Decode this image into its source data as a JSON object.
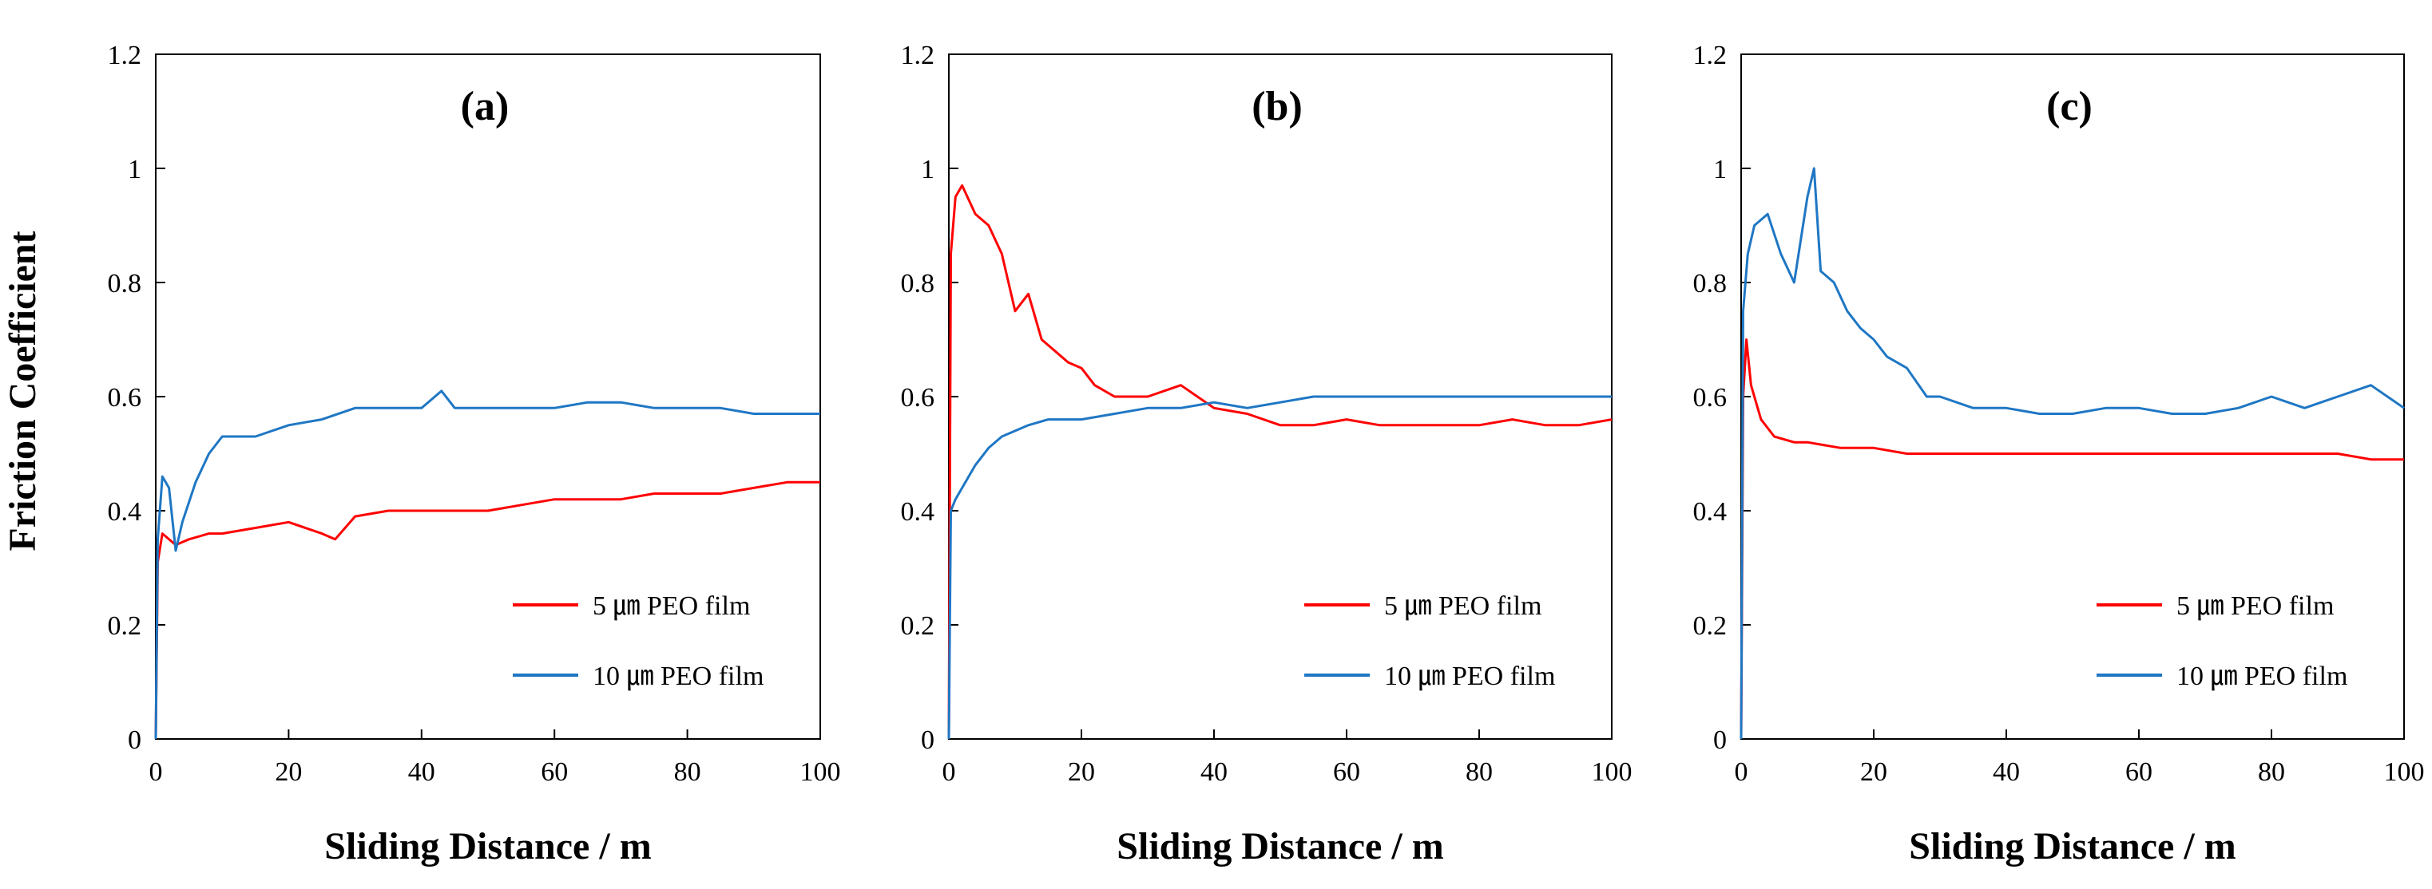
{
  "figure": {
    "ylabel": "Friction Coefficient"
  },
  "colors": {
    "red": "#ff0000",
    "blue": "#1f77c4",
    "axis": "#000000"
  },
  "chart_data": [
    {
      "type": "line",
      "title": "(a)",
      "xlabel": "Sliding Distance / m",
      "ylabel": "Friction Coefficient",
      "xlim": [
        0,
        100
      ],
      "ylim": [
        0,
        1.2
      ],
      "xticks": [
        "0",
        "20",
        "40",
        "60",
        "80",
        "100"
      ],
      "yticks": [
        "0",
        "0.2",
        "0.4",
        "0.6",
        "0.8",
        "1",
        "1.2"
      ],
      "legend_position": "bottom-right",
      "series": [
        {
          "name": "5 ㎛ PEO film",
          "color": "#ff0000",
          "x": [
            0,
            0.3,
            1,
            2,
            3,
            5,
            8,
            10,
            15,
            20,
            25,
            27,
            30,
            35,
            40,
            45,
            50,
            55,
            60,
            65,
            70,
            75,
            80,
            85,
            90,
            95,
            100
          ],
          "values": [
            0,
            0.31,
            0.36,
            0.35,
            0.34,
            0.35,
            0.36,
            0.36,
            0.37,
            0.38,
            0.36,
            0.35,
            0.39,
            0.4,
            0.4,
            0.4,
            0.4,
            0.41,
            0.42,
            0.42,
            0.42,
            0.43,
            0.43,
            0.43,
            0.44,
            0.45,
            0.45
          ]
        },
        {
          "name": "10 ㎛ PEO film",
          "color": "#1f77c4",
          "x": [
            0,
            0.3,
            1,
            2,
            3,
            4,
            6,
            8,
            10,
            15,
            20,
            25,
            30,
            35,
            40,
            43,
            45,
            50,
            55,
            60,
            65,
            70,
            75,
            80,
            85,
            90,
            95,
            100
          ],
          "values": [
            0,
            0.35,
            0.46,
            0.44,
            0.33,
            0.38,
            0.45,
            0.5,
            0.53,
            0.53,
            0.55,
            0.56,
            0.58,
            0.58,
            0.58,
            0.61,
            0.58,
            0.58,
            0.58,
            0.58,
            0.59,
            0.59,
            0.58,
            0.58,
            0.58,
            0.57,
            0.57,
            0.57
          ]
        }
      ]
    },
    {
      "type": "line",
      "title": "(b)",
      "xlabel": "Sliding Distance / m",
      "ylabel": "Friction Coefficient",
      "xlim": [
        0,
        100
      ],
      "ylim": [
        0,
        1.2
      ],
      "xticks": [
        "0",
        "20",
        "40",
        "60",
        "80",
        "100"
      ],
      "yticks": [
        "0",
        "0.2",
        "0.4",
        "0.6",
        "0.8",
        "1",
        "1.2"
      ],
      "legend_position": "bottom-right",
      "series": [
        {
          "name": "5 ㎛ PEO film",
          "color": "#ff0000",
          "x": [
            0,
            0.3,
            1,
            2,
            4,
            6,
            8,
            10,
            12,
            14,
            16,
            18,
            20,
            22,
            25,
            30,
            35,
            40,
            45,
            50,
            55,
            60,
            65,
            70,
            75,
            80,
            85,
            90,
            95,
            100
          ],
          "values": [
            0,
            0.85,
            0.95,
            0.97,
            0.92,
            0.9,
            0.85,
            0.75,
            0.78,
            0.7,
            0.68,
            0.66,
            0.65,
            0.62,
            0.6,
            0.6,
            0.62,
            0.58,
            0.57,
            0.55,
            0.55,
            0.56,
            0.55,
            0.55,
            0.55,
            0.55,
            0.56,
            0.55,
            0.55,
            0.56
          ]
        },
        {
          "name": "10 ㎛ PEO film",
          "color": "#1f77c4",
          "x": [
            0,
            0.3,
            1,
            2,
            4,
            6,
            8,
            10,
            12,
            15,
            18,
            20,
            25,
            30,
            35,
            40,
            45,
            50,
            55,
            60,
            65,
            70,
            75,
            80,
            85,
            90,
            95,
            100
          ],
          "values": [
            0,
            0.4,
            0.42,
            0.44,
            0.48,
            0.51,
            0.53,
            0.54,
            0.55,
            0.56,
            0.56,
            0.56,
            0.57,
            0.58,
            0.58,
            0.59,
            0.58,
            0.59,
            0.6,
            0.6,
            0.6,
            0.6,
            0.6,
            0.6,
            0.6,
            0.6,
            0.6,
            0.6
          ]
        }
      ]
    },
    {
      "type": "line",
      "title": "(c)",
      "xlabel": "Sliding Distance / m",
      "ylabel": "Friction Coefficient",
      "xlim": [
        0,
        100
      ],
      "ylim": [
        0,
        1.2
      ],
      "xticks": [
        "0",
        "20",
        "40",
        "60",
        "80",
        "100"
      ],
      "yticks": [
        "0",
        "0.2",
        "0.4",
        "0.6",
        "0.8",
        "1",
        "1.2"
      ],
      "legend_position": "bottom-right",
      "series": [
        {
          "name": "5 ㎛ PEO film",
          "color": "#ff0000",
          "x": [
            0,
            0.3,
            0.8,
            1.5,
            3,
            5,
            8,
            10,
            15,
            20,
            25,
            30,
            35,
            40,
            45,
            50,
            55,
            60,
            65,
            70,
            75,
            80,
            85,
            90,
            95,
            100
          ],
          "values": [
            0,
            0.6,
            0.7,
            0.62,
            0.56,
            0.53,
            0.52,
            0.52,
            0.51,
            0.51,
            0.5,
            0.5,
            0.5,
            0.5,
            0.5,
            0.5,
            0.5,
            0.5,
            0.5,
            0.5,
            0.5,
            0.5,
            0.5,
            0.5,
            0.49,
            0.49
          ]
        },
        {
          "name": "10 ㎛ PEO film",
          "color": "#1f77c4",
          "x": [
            0,
            0.3,
            1,
            2,
            4,
            6,
            8,
            10,
            11,
            12,
            14,
            16,
            18,
            20,
            22,
            25,
            28,
            30,
            35,
            40,
            45,
            50,
            55,
            60,
            65,
            70,
            75,
            80,
            85,
            90,
            95,
            100
          ],
          "values": [
            0,
            0.75,
            0.85,
            0.9,
            0.92,
            0.85,
            0.8,
            0.95,
            1.0,
            0.82,
            0.8,
            0.75,
            0.72,
            0.7,
            0.67,
            0.65,
            0.6,
            0.6,
            0.58,
            0.58,
            0.57,
            0.57,
            0.58,
            0.58,
            0.57,
            0.57,
            0.58,
            0.6,
            0.58,
            0.6,
            0.62,
            0.58
          ]
        }
      ]
    }
  ]
}
